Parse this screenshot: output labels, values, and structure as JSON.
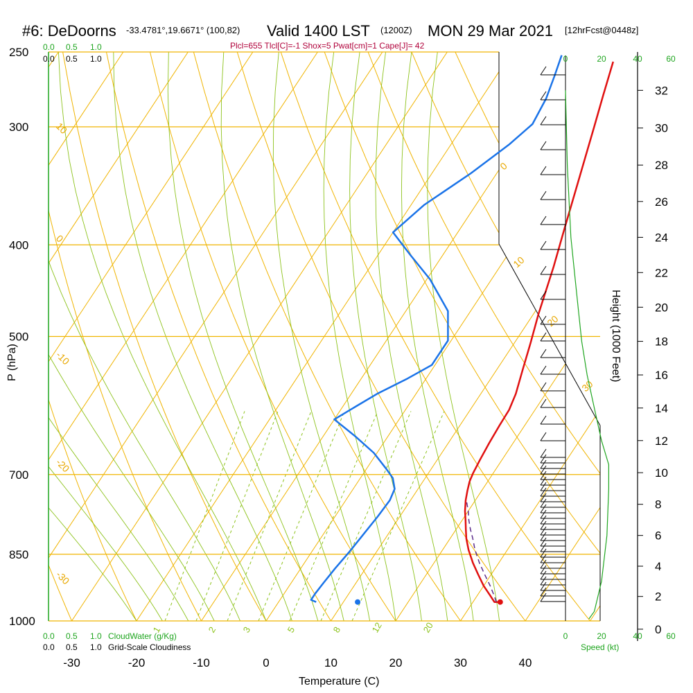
{
  "header": {
    "station": "#6: DeDoorns",
    "coords": "-33.4781°,19.6671° (100,82)",
    "valid": "Valid 1400 LST",
    "utc": "(1200Z)",
    "date": "MON 29 Mar 2021",
    "forecast": "[12hrFcst@0448z]",
    "indices": "Plcl=655 Tlcl[C]=-1 Shox=5 Pwat[cm]=1 Cape[J]= 42"
  },
  "colors": {
    "temperature": "#e01010",
    "dewpoint": "#1a73e8",
    "isotherm": "#f0b400",
    "dry_adiabat": "#f0b400",
    "moist_adiabat": "#8cc21a",
    "mixing_ratio": "#8cc21a",
    "cloudwater": "#1ea51e",
    "parcel": "#5a2a8a",
    "wind": "#000000"
  },
  "chart_data": {
    "type": "line",
    "title": "",
    "xlabel": "Temperature (C)",
    "ylabel": "P (hPa)",
    "y2label": "Height (1000 Feet)",
    "x_ticks": [
      "-30",
      "-20",
      "-10",
      "0",
      "10",
      "20",
      "30",
      "40"
    ],
    "pressure_ticks": [
      "250",
      "300",
      "400",
      "500",
      "700",
      "850",
      "1000"
    ],
    "height_ticks": [
      "0",
      "2",
      "4",
      "6",
      "8",
      "10",
      "12",
      "14",
      "16",
      "18",
      "20",
      "22",
      "24",
      "26",
      "28",
      "30",
      "32"
    ],
    "cloud_scale_top": [
      "0.0",
      "0.5",
      "1.0"
    ],
    "cloudiness_scale_top": [
      "0.0",
      "0.5",
      "1.0"
    ],
    "cloud_scale_bottom": [
      "0.0",
      "0.5",
      "1.0"
    ],
    "cloudiness_scale_bottom": [
      "0.0",
      "0.5",
      "1.0"
    ],
    "cloudwater_label": "CloudWater (g/Kg)",
    "cloudiness_label": "Grid-Scale Cloudiness",
    "speed_ticks_top": [
      "0",
      "20",
      "40",
      "60"
    ],
    "speed_ticks_bottom": [
      "0",
      "20",
      "40",
      "60"
    ],
    "speed_label": "Speed (kt)",
    "isotherm_labels": [
      "10",
      "0",
      "-10",
      "-20",
      "-30"
    ],
    "dry_adiabat_labels": [
      "0",
      "10",
      "20",
      "30"
    ],
    "mixing_ratio_labels": [
      "1",
      "2",
      "3",
      "5",
      "8",
      "12",
      "20"
    ],
    "series": [
      {
        "id": "temperature",
        "points": [
          [
            34.2,
            955
          ],
          [
            33.3,
            955
          ],
          [
            32.0,
            940
          ],
          [
            30.0,
            918
          ],
          [
            28.0,
            893
          ],
          [
            26.0,
            868
          ],
          [
            24.0,
            841
          ],
          [
            22.5,
            818
          ],
          [
            21.5,
            800
          ],
          [
            20.5,
            782
          ],
          [
            19.5,
            765
          ],
          [
            18.5,
            745
          ],
          [
            17.8,
            728
          ],
          [
            17.2,
            712
          ],
          [
            16.9,
            698
          ],
          [
            16.6,
            675
          ],
          [
            16.3,
            648
          ],
          [
            16.1,
            620
          ],
          [
            16.0,
            598
          ],
          [
            15.4,
            575
          ],
          [
            14.0,
            542
          ],
          [
            12.5,
            508
          ],
          [
            10.8,
            474
          ],
          [
            8.3,
            422
          ],
          [
            6.0,
            383
          ],
          [
            3.5,
            344
          ],
          [
            0.3,
            300
          ],
          [
            -1.5,
            278
          ],
          [
            -3.4,
            256
          ]
        ]
      },
      {
        "id": "dewpoint",
        "points": [
          [
            5.8,
            955
          ],
          [
            4.8,
            950
          ],
          [
            4.8,
            935
          ],
          [
            5.0,
            910
          ],
          [
            5.3,
            880
          ],
          [
            5.8,
            845
          ],
          [
            6.2,
            810
          ],
          [
            6.6,
            775
          ],
          [
            6.8,
            745
          ],
          [
            6.4,
            725
          ],
          [
            5.0,
            706
          ],
          [
            3.0,
            690
          ],
          [
            -0.5,
            664
          ],
          [
            -5.0,
            638
          ],
          [
            -10.0,
            612
          ],
          [
            -8.0,
            593
          ],
          [
            -6.0,
            575
          ],
          [
            -3.0,
            555
          ],
          [
            -0.5,
            536
          ],
          [
            -0.5,
            505
          ],
          [
            -3.5,
            470
          ],
          [
            -9.5,
            435
          ],
          [
            -15.0,
            410
          ],
          [
            -20.0,
            388
          ],
          [
            -18.0,
            363
          ],
          [
            -14.0,
            336
          ],
          [
            -11.0,
            313
          ],
          [
            -9.5,
            298
          ],
          [
            -10.0,
            280
          ],
          [
            -11.0,
            265
          ],
          [
            -12.0,
            252
          ]
        ]
      },
      {
        "id": "parcel",
        "points": [
          [
            33.6,
            955
          ],
          [
            32.6,
            940
          ],
          [
            31.0,
            918
          ],
          [
            29.0,
            893
          ],
          [
            27.0,
            868
          ],
          [
            25.0,
            841
          ],
          [
            23.5,
            818
          ],
          [
            22.2,
            800
          ],
          [
            21.0,
            782
          ],
          [
            20.0,
            765
          ],
          [
            18.8,
            748
          ]
        ]
      }
    ],
    "surface_markers": [
      {
        "id": "surface-temperature",
        "x": 34.2
      },
      {
        "id": "surface-dewpoint",
        "x": 12.2
      }
    ],
    "cloudwater_profile": [
      [
        0,
        1000
      ],
      [
        0,
        250
      ]
    ],
    "wind_speed_profile": [
      [
        13,
        0.5
      ],
      [
        16,
        1
      ],
      [
        20,
        3
      ],
      [
        23,
        6
      ],
      [
        24,
        9
      ],
      [
        24,
        10.5
      ],
      [
        20,
        12
      ],
      [
        16,
        14
      ],
      [
        12,
        16
      ],
      [
        9,
        18
      ],
      [
        7,
        20
      ],
      [
        5,
        22
      ],
      [
        3,
        24
      ],
      [
        2,
        26
      ],
      [
        1,
        28
      ],
      [
        0.5,
        30
      ],
      [
        0,
        32
      ]
    ]
  }
}
